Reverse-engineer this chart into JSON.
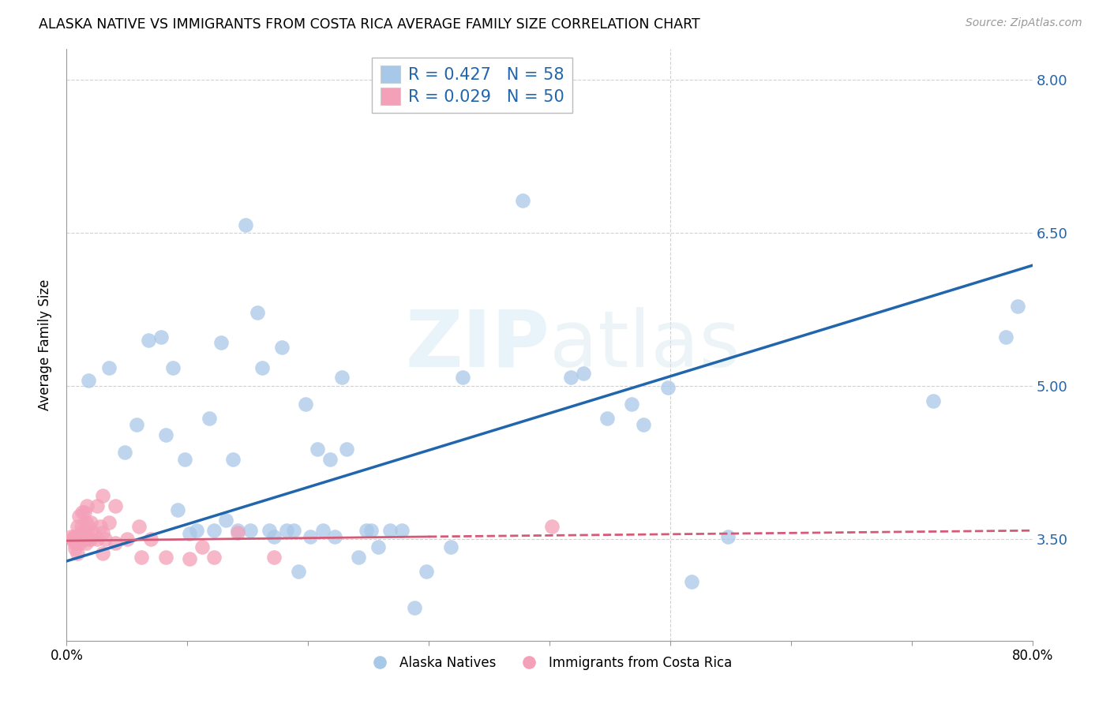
{
  "title": "ALASKA NATIVE VS IMMIGRANTS FROM COSTA RICA AVERAGE FAMILY SIZE CORRELATION CHART",
  "source": "Source: ZipAtlas.com",
  "ylabel": "Average Family Size",
  "yticks": [
    3.5,
    5.0,
    6.5,
    8.0
  ],
  "xmin": 0.0,
  "xmax": 0.8,
  "ymin": 2.5,
  "ymax": 8.3,
  "watermark": "ZIPatlas",
  "legend_blue_R": "R = 0.427",
  "legend_blue_N": "N = 58",
  "legend_pink_R": "R = 0.029",
  "legend_pink_N": "N = 50",
  "blue_label": "Alaska Natives",
  "pink_label": "Immigrants from Costa Rica",
  "blue_color": "#a8c8e8",
  "pink_color": "#f4a0b8",
  "blue_line_color": "#2166ac",
  "pink_line_color": "#d45a78",
  "blue_scatter": [
    [
      0.018,
      5.05
    ],
    [
      0.035,
      5.18
    ],
    [
      0.048,
      4.35
    ],
    [
      0.058,
      4.62
    ],
    [
      0.068,
      5.45
    ],
    [
      0.078,
      5.48
    ],
    [
      0.082,
      4.52
    ],
    [
      0.088,
      5.18
    ],
    [
      0.092,
      3.78
    ],
    [
      0.098,
      4.28
    ],
    [
      0.102,
      3.55
    ],
    [
      0.108,
      3.58
    ],
    [
      0.118,
      4.68
    ],
    [
      0.122,
      3.58
    ],
    [
      0.128,
      5.42
    ],
    [
      0.132,
      3.68
    ],
    [
      0.138,
      4.28
    ],
    [
      0.142,
      3.58
    ],
    [
      0.148,
      6.58
    ],
    [
      0.152,
      3.58
    ],
    [
      0.158,
      5.72
    ],
    [
      0.162,
      5.18
    ],
    [
      0.168,
      3.58
    ],
    [
      0.172,
      3.52
    ],
    [
      0.178,
      5.38
    ],
    [
      0.182,
      3.58
    ],
    [
      0.188,
      3.58
    ],
    [
      0.192,
      3.18
    ],
    [
      0.198,
      4.82
    ],
    [
      0.202,
      3.52
    ],
    [
      0.208,
      4.38
    ],
    [
      0.212,
      3.58
    ],
    [
      0.218,
      4.28
    ],
    [
      0.222,
      3.52
    ],
    [
      0.228,
      5.08
    ],
    [
      0.232,
      4.38
    ],
    [
      0.242,
      3.32
    ],
    [
      0.248,
      3.58
    ],
    [
      0.252,
      3.58
    ],
    [
      0.258,
      3.42
    ],
    [
      0.268,
      3.58
    ],
    [
      0.278,
      3.58
    ],
    [
      0.288,
      2.82
    ],
    [
      0.298,
      3.18
    ],
    [
      0.318,
      3.42
    ],
    [
      0.328,
      5.08
    ],
    [
      0.378,
      6.82
    ],
    [
      0.418,
      5.08
    ],
    [
      0.428,
      5.12
    ],
    [
      0.448,
      4.68
    ],
    [
      0.468,
      4.82
    ],
    [
      0.478,
      4.62
    ],
    [
      0.498,
      4.98
    ],
    [
      0.518,
      3.08
    ],
    [
      0.548,
      3.52
    ],
    [
      0.718,
      4.85
    ],
    [
      0.778,
      5.48
    ],
    [
      0.788,
      5.78
    ]
  ],
  "pink_scatter": [
    [
      0.004,
      3.52
    ],
    [
      0.005,
      3.5
    ],
    [
      0.006,
      3.46
    ],
    [
      0.006,
      3.52
    ],
    [
      0.007,
      3.5
    ],
    [
      0.007,
      3.4
    ],
    [
      0.008,
      3.52
    ],
    [
      0.008,
      3.46
    ],
    [
      0.009,
      3.62
    ],
    [
      0.009,
      3.36
    ],
    [
      0.01,
      3.72
    ],
    [
      0.01,
      3.5
    ],
    [
      0.011,
      3.46
    ],
    [
      0.012,
      3.62
    ],
    [
      0.012,
      3.56
    ],
    [
      0.013,
      3.76
    ],
    [
      0.013,
      3.5
    ],
    [
      0.014,
      3.56
    ],
    [
      0.015,
      3.76
    ],
    [
      0.015,
      3.5
    ],
    [
      0.016,
      3.66
    ],
    [
      0.016,
      3.46
    ],
    [
      0.017,
      3.82
    ],
    [
      0.017,
      3.56
    ],
    [
      0.018,
      3.62
    ],
    [
      0.019,
      3.5
    ],
    [
      0.02,
      3.66
    ],
    [
      0.02,
      3.5
    ],
    [
      0.022,
      3.56
    ],
    [
      0.025,
      3.82
    ],
    [
      0.025,
      3.5
    ],
    [
      0.028,
      3.62
    ],
    [
      0.03,
      3.92
    ],
    [
      0.03,
      3.56
    ],
    [
      0.03,
      3.36
    ],
    [
      0.032,
      3.5
    ],
    [
      0.035,
      3.66
    ],
    [
      0.04,
      3.82
    ],
    [
      0.04,
      3.46
    ],
    [
      0.05,
      3.5
    ],
    [
      0.06,
      3.62
    ],
    [
      0.062,
      3.32
    ],
    [
      0.07,
      3.5
    ],
    [
      0.082,
      3.32
    ],
    [
      0.102,
      3.3
    ],
    [
      0.112,
      3.42
    ],
    [
      0.122,
      3.32
    ],
    [
      0.142,
      3.56
    ],
    [
      0.172,
      3.32
    ],
    [
      0.402,
      3.62
    ]
  ],
  "blue_trendline_solid": [
    [
      0.0,
      3.28
    ],
    [
      0.8,
      6.18
    ]
  ],
  "pink_trendline_solid": [
    [
      0.0,
      3.48
    ],
    [
      0.3,
      3.52
    ]
  ],
  "pink_trendline_dashed": [
    [
      0.3,
      3.52
    ],
    [
      0.8,
      3.58
    ]
  ],
  "grid_color": "#cccccc",
  "bg_color": "#ffffff"
}
